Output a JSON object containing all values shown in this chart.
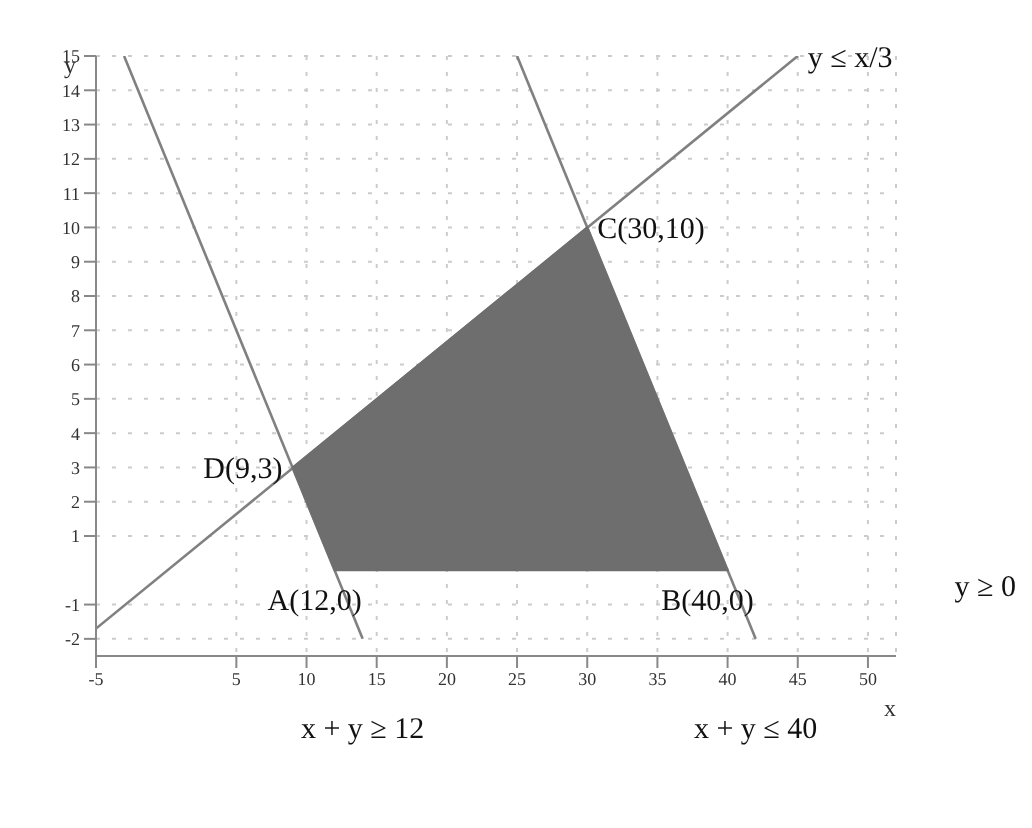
{
  "chart_data": {
    "type": "line",
    "xlabel": "x",
    "ylabel": "y",
    "xlim": [
      -5,
      52
    ],
    "ylim": [
      -2.5,
      15
    ],
    "xticks": [
      -5,
      5,
      10,
      15,
      20,
      25,
      30,
      35,
      40,
      45,
      50
    ],
    "yticks": [
      -2,
      -1,
      1,
      2,
      3,
      4,
      5,
      6,
      7,
      8,
      9,
      10,
      11,
      12,
      13,
      14,
      15
    ],
    "grid": true,
    "marker": "none",
    "line_style": "solid",
    "series": [
      {
        "type": "area",
        "color": "#6e6e6e",
        "x": [
          9,
          12,
          40,
          30
        ],
        "values": [
          3,
          0,
          0,
          10
        ]
      },
      {
        "color": "#808080",
        "x": [
          -3,
          14
        ],
        "values": [
          15,
          -2
        ]
      },
      {
        "color": "#808080",
        "x": [
          25,
          42
        ],
        "values": [
          15,
          -2
        ]
      },
      {
        "color": "#808080",
        "x": [
          -5,
          45
        ],
        "values": [
          -1.7,
          15
        ]
      }
    ],
    "annotations": [
      {
        "text": "D(9,3)",
        "x": 9,
        "y": 3
      },
      {
        "text": "A(12,0)",
        "x": 12,
        "y": 0
      },
      {
        "text": "B(40,0)",
        "x": 40,
        "y": 0
      },
      {
        "text": "C(30,10)",
        "x": 30,
        "y": 10
      },
      {
        "text": "x + y ≥ 12",
        "x": 14,
        "y": -2
      },
      {
        "text": "x + y ≤ 40",
        "x": 42,
        "y": -2
      },
      {
        "text": "y ≤ x/3",
        "x": 45,
        "y": 15
      },
      "y ≥ 0"
    ]
  }
}
